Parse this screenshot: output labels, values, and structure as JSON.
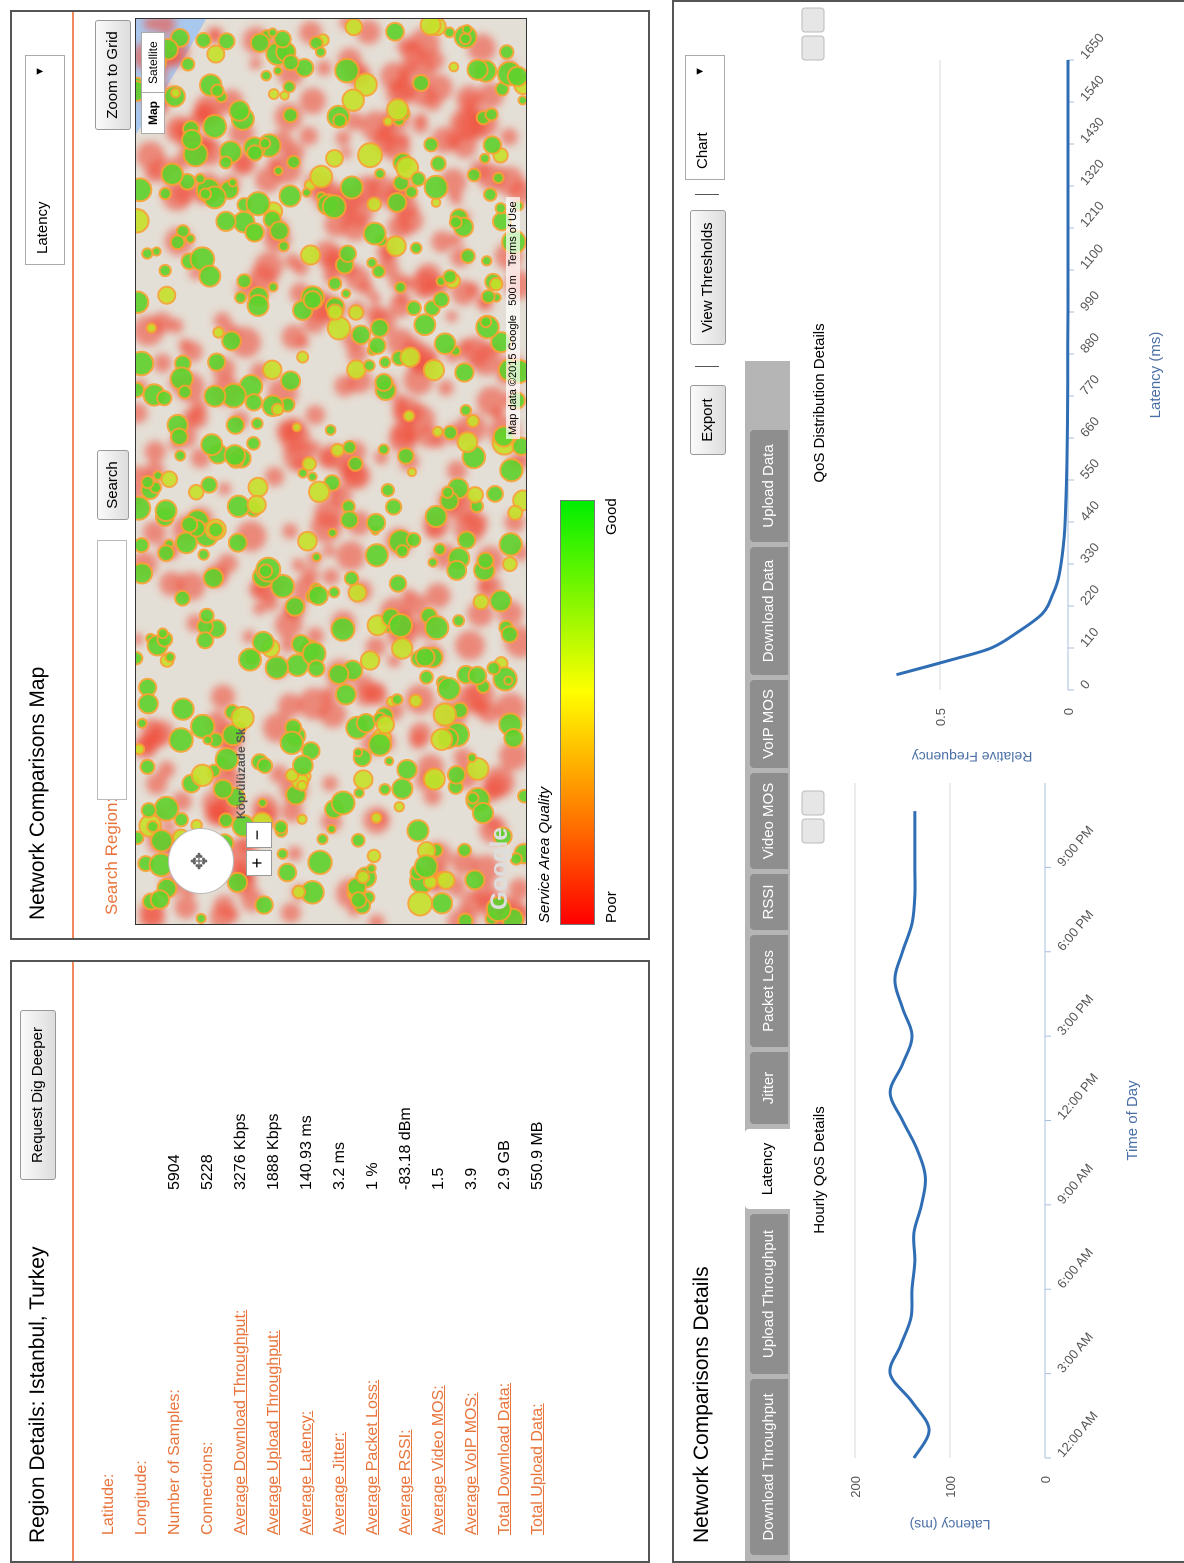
{
  "region_details": {
    "title": "Region Details: Istanbul, Turkey",
    "button": "Request Dig Deeper",
    "rows": [
      {
        "label": "Latitude:"
      },
      {
        "label": "Longitude:"
      },
      {
        "label": "Number of Samples:",
        "value": "5904"
      },
      {
        "label": "Connections:",
        "value": "5228"
      },
      {
        "label": "Average Download Throughput:",
        "value": "3276 Kbps",
        "link": true
      },
      {
        "label": "Average Upload Throughput:",
        "value": "1888 Kbps",
        "link": true
      },
      {
        "label": "Average Latency:",
        "value": "140.93 ms",
        "link": true
      },
      {
        "label": "Average Jitter:",
        "value": "3.2 ms",
        "link": true
      },
      {
        "label": "Average Packet Loss:",
        "value": "1 %",
        "link": true
      },
      {
        "label": "Average RSSI:",
        "value": "-83.18 dBm",
        "link": true
      },
      {
        "label": "Average Video MOS:",
        "value": "1.5",
        "link": true
      },
      {
        "label": "Average VoIP MOS:",
        "value": "3.9",
        "link": true
      },
      {
        "label": "Total Download Data:",
        "value": "2.9 GB",
        "link": true
      },
      {
        "label": "Total Upload Data:",
        "value": "550.9 MB",
        "link": true
      }
    ]
  },
  "map_panel": {
    "title": "Network Comparisons Map",
    "metric_select": "Latency",
    "search_label": "Search Region:",
    "search_button": "Search",
    "zoom_button": "Zoom to Grid",
    "map_types": [
      "Map",
      "Satellite"
    ],
    "street_label": "Köprülüzade Sk",
    "logo": "Google",
    "attribution": "Map data ©2015 Google",
    "scale": "500 m",
    "terms": "Terms of Use",
    "legend": {
      "title": "Service Area Quality",
      "low": "Poor",
      "high": "Good"
    }
  },
  "details_panel": {
    "title": "Network Comparisons Details",
    "tabs": [
      {
        "label": "Download Throughput"
      },
      {
        "label": "Upload Throughput"
      },
      {
        "label": "Latency",
        "selected": true
      },
      {
        "label": "Jitter"
      },
      {
        "label": "Packet Loss"
      },
      {
        "label": "RSSI"
      },
      {
        "label": "Video MOS"
      },
      {
        "label": "VoIP MOS"
      },
      {
        "label": "Download Data"
      },
      {
        "label": "Upload Data"
      }
    ],
    "buttons": [
      "Export",
      "View Thresholds"
    ],
    "view_select": "Chart",
    "charts": [
      {
        "type": "line",
        "title": "Hourly QoS Details",
        "x_label": "Time of Day",
        "y_label": "Latency (ms)",
        "color": "#2f6db5",
        "x": [
          0,
          1,
          2,
          3,
          4,
          5,
          6,
          7,
          8,
          9,
          10,
          11,
          12,
          13,
          14,
          15,
          16,
          17,
          18,
          19,
          20,
          21,
          22,
          23
        ],
        "values": [
          138,
          122,
          140,
          163,
          152,
          141,
          140,
          137,
          138,
          130,
          126,
          135,
          150,
          163,
          150,
          140,
          150,
          158,
          150,
          140,
          137,
          137,
          137,
          137
        ],
        "xlim": [
          0,
          24
        ],
        "xticks": [
          {
            "value": 0,
            "label": "12:00 AM"
          },
          {
            "value": 3,
            "label": "3:00 AM"
          },
          {
            "value": 6,
            "label": "6:00 AM"
          },
          {
            "value": 9,
            "label": "9:00 AM"
          },
          {
            "value": 12,
            "label": "12:00 PM"
          },
          {
            "value": 15,
            "label": "3:00 PM"
          },
          {
            "value": 18,
            "label": "6:00 PM"
          },
          {
            "value": 21,
            "label": "9:00 PM"
          }
        ],
        "ylim": [
          0,
          200
        ],
        "yticks": [
          0,
          100,
          200
        ],
        "grid": true
      },
      {
        "type": "line",
        "title": "QoS Distribution Details",
        "x_label": "Latency (ms)",
        "y_label": "Relative Frequency",
        "color": "#2f6db5",
        "x": [
          40,
          80,
          110,
          150,
          200,
          250,
          300,
          400,
          500,
          600,
          700,
          800,
          900,
          1000,
          1100,
          1200,
          1300,
          1400,
          1500,
          1600,
          1650
        ],
        "values": [
          0.67,
          0.45,
          0.3,
          0.2,
          0.1,
          0.06,
          0.035,
          0.015,
          0.008,
          0.004,
          0.002,
          0.001,
          0.001,
          0,
          0,
          0,
          0,
          0,
          0,
          0,
          0
        ],
        "xlim": [
          0,
          1650
        ],
        "xticks": [
          0,
          110,
          220,
          330,
          440,
          550,
          660,
          770,
          880,
          990,
          1100,
          1210,
          1320,
          1430,
          1540,
          1650
        ],
        "ylim": [
          0,
          0.75
        ],
        "yticks": [
          0,
          0.5
        ],
        "grid": true
      }
    ]
  }
}
